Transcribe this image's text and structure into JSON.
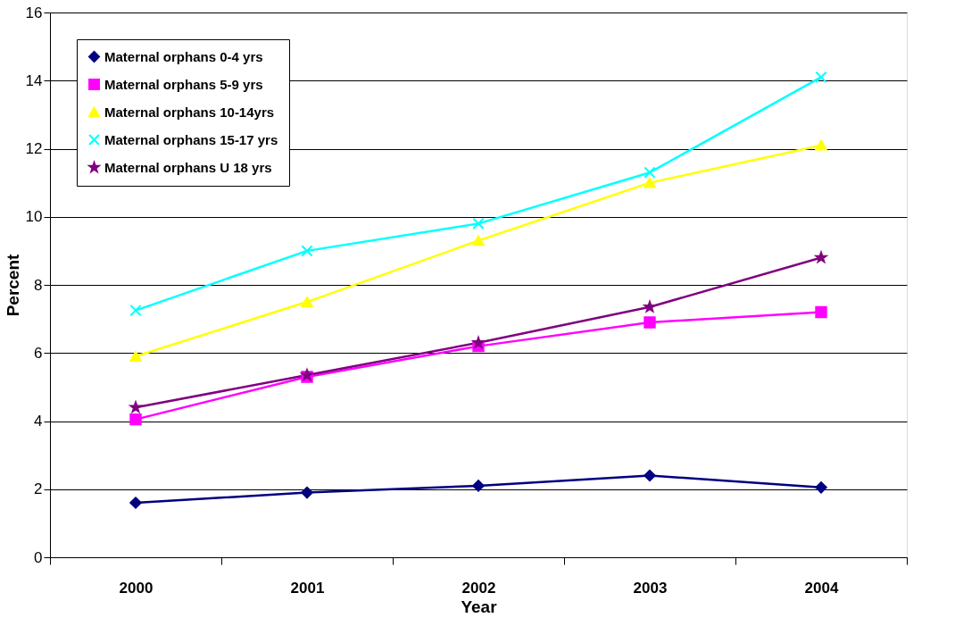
{
  "chart_data": {
    "type": "line",
    "xlabel": "Year",
    "ylabel": "Percent",
    "categories": [
      "2000",
      "2001",
      "2002",
      "2003",
      "2004"
    ],
    "ylim": [
      0,
      16
    ],
    "yticks": [
      0,
      2,
      4,
      6,
      8,
      10,
      12,
      14,
      16
    ],
    "grid": "y",
    "legend": "top left",
    "series": [
      {
        "name": "Maternal orphans 0-4 yrs",
        "color": "#000080",
        "marker": "diamond",
        "values": [
          1.6,
          1.9,
          2.1,
          2.4,
          2.05
        ]
      },
      {
        "name": "Maternal orphans 5-9 yrs",
        "color": "#ff00ff",
        "marker": "square",
        "values": [
          4.05,
          5.3,
          6.2,
          6.9,
          7.2
        ]
      },
      {
        "name": "Maternal orphans 10-14yrs",
        "color": "#ffff00",
        "marker": "triangle",
        "values": [
          5.9,
          7.5,
          9.3,
          11.0,
          12.1
        ]
      },
      {
        "name": "Maternal orphans 15-17 yrs",
        "color": "#00ffff",
        "marker": "cross",
        "values": [
          7.25,
          9.0,
          9.8,
          11.3,
          14.1
        ]
      },
      {
        "name": "Maternal orphans U 18 yrs",
        "color": "#800080",
        "marker": "star",
        "values": [
          4.4,
          5.35,
          6.3,
          7.35,
          8.8
        ]
      }
    ]
  }
}
